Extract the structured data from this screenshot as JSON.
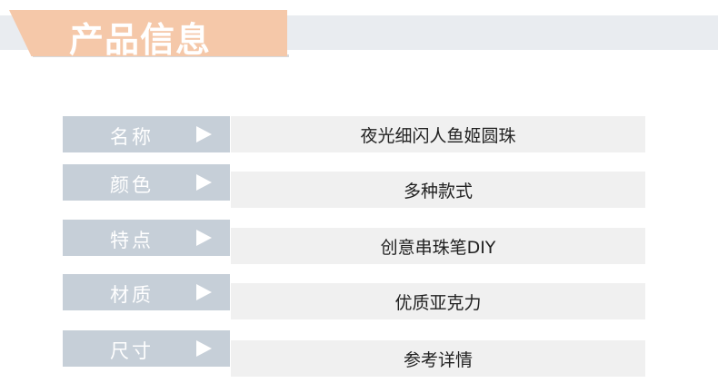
{
  "header": {
    "title": "产品信息"
  },
  "rows": [
    {
      "label": "名称",
      "value": "夜光细闪人鱼姬圆珠"
    },
    {
      "label": "颜色",
      "value": "多种款式"
    },
    {
      "label": "特点",
      "value": "创意串珠笔DIY"
    },
    {
      "label": "材质",
      "value": "优质亚克力"
    },
    {
      "label": "尺寸",
      "value": "参考详情"
    }
  ],
  "colors": {
    "banner": "#f5c8a9",
    "label_bg": "#c6cfd8",
    "value_bg": "#f0f0f0"
  }
}
